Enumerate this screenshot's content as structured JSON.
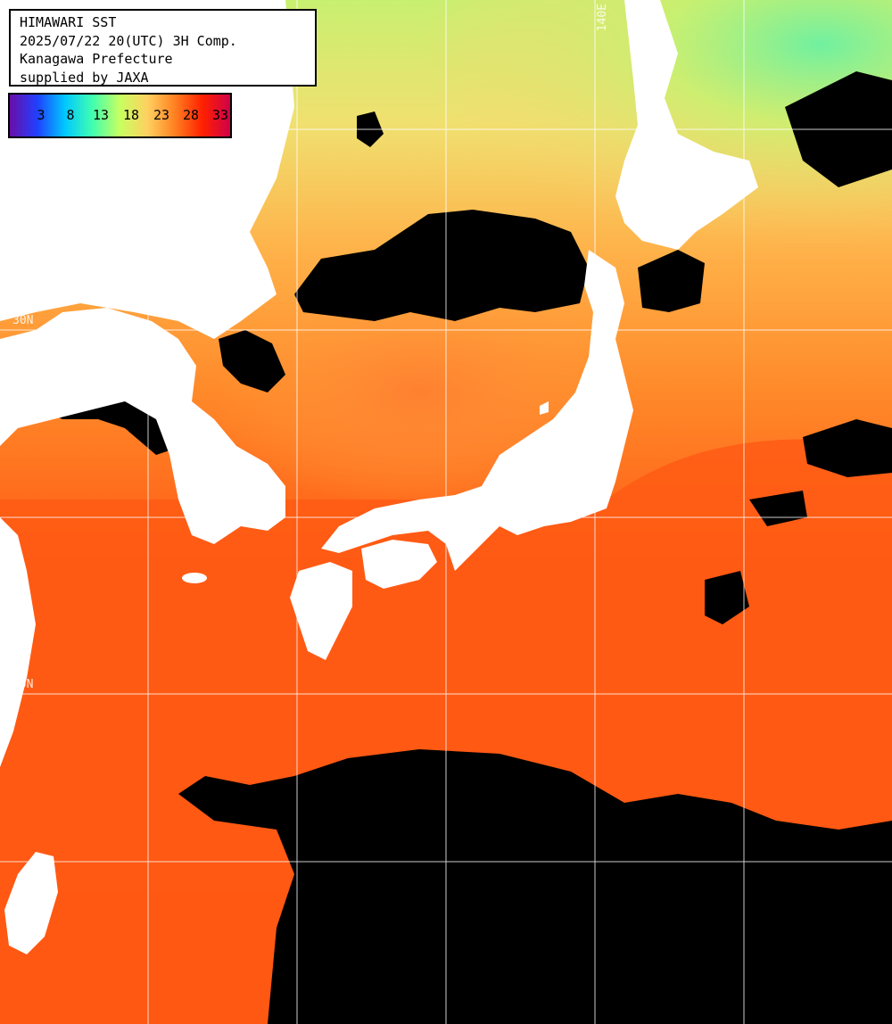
{
  "title": {
    "line1": "HIMAWARI SST",
    "line2": "2025/07/22 20(UTC) 3H Comp.",
    "line3": "Kanagawa Prefecture",
    "line4": "supplied by JAXA"
  },
  "colorbar": {
    "ticks": [
      "3",
      "8",
      "13",
      "18",
      "23",
      "28",
      "33"
    ],
    "unit_values": [
      3,
      8,
      13,
      18,
      23,
      28,
      33
    ],
    "colors": [
      "#6a0ea8",
      "#2040ff",
      "#00c8ff",
      "#40ffb0",
      "#c8ff60",
      "#ffd060",
      "#ff8020",
      "#ff2000",
      "#d0004a"
    ]
  },
  "grid_labels": {
    "lon_top": "140E",
    "lat_left_upper": "30N",
    "lat_left_lower": "25N"
  },
  "colors": {
    "land": "#ffffff",
    "cloud": "#000000",
    "warm_sea": "#ff5a14",
    "mid_sea": "#ffb040",
    "cool_sea": "#c0f070",
    "grid": "#ffffff"
  }
}
